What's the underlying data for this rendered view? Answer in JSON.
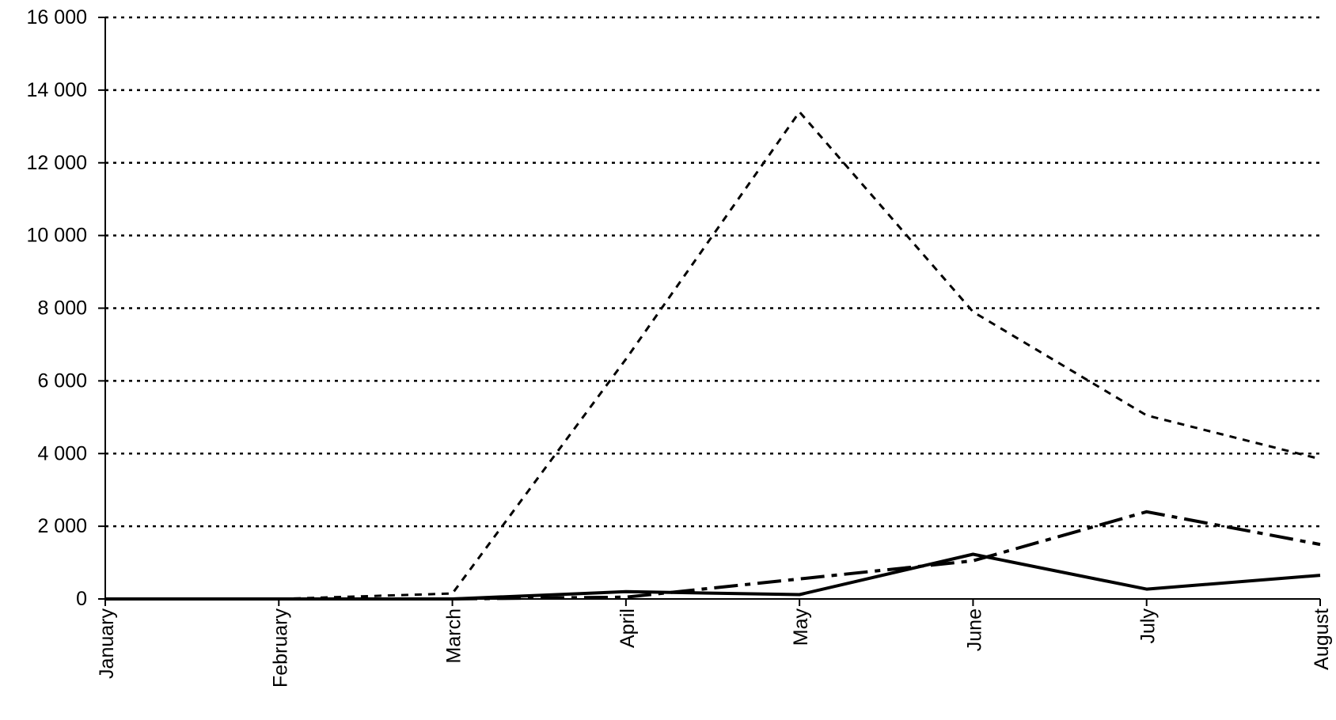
{
  "chart_data": {
    "type": "line",
    "title": "",
    "xlabel": "",
    "ylabel": "",
    "categories": [
      "January",
      "February",
      "March",
      "April",
      "May",
      "June",
      "July",
      "August"
    ],
    "y_ticks": [
      "0",
      "2 000",
      "4 000",
      "6 000",
      "8 000",
      "10 000",
      "12 000",
      "14 000",
      "16 000"
    ],
    "ylim": [
      0,
      16000
    ],
    "grid": "horizontal dotted",
    "legend": "none",
    "series": [
      {
        "style": "short-dash",
        "color": "#000000",
        "values": [
          0,
          0,
          150,
          6600,
          13400,
          7900,
          5050,
          3850
        ]
      },
      {
        "style": "dash-dot",
        "color": "#000000",
        "values": [
          0,
          0,
          0,
          50,
          550,
          1050,
          2400,
          1500
        ]
      },
      {
        "style": "solid",
        "color": "#000000",
        "values": [
          0,
          0,
          0,
          200,
          120,
          1230,
          270,
          650
        ]
      }
    ]
  }
}
